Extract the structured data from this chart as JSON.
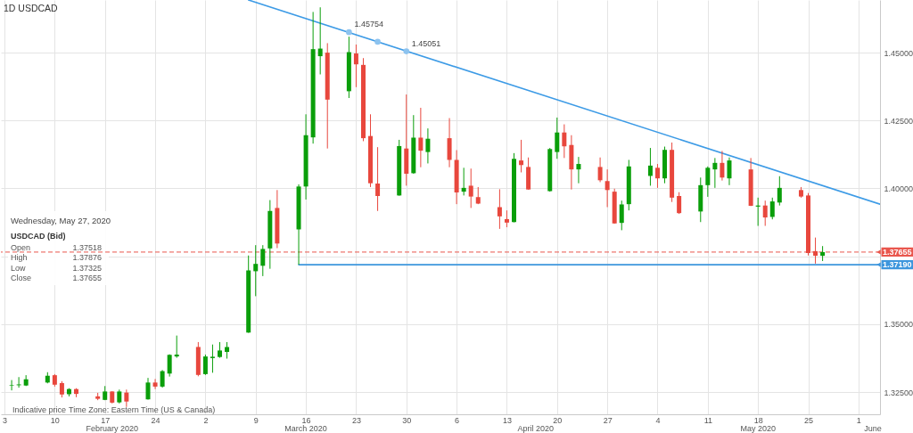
{
  "chart_data": {
    "type": "candlestick",
    "title": "1D USDCAD",
    "x": [
      "2020-02-04",
      "2020-02-05",
      "2020-02-06",
      "2020-02-09",
      "2020-02-10",
      "2020-02-11",
      "2020-02-12",
      "2020-02-13",
      "2020-02-16",
      "2020-02-17",
      "2020-02-18",
      "2020-02-19",
      "2020-02-20",
      "2020-02-23",
      "2020-02-24",
      "2020-02-25",
      "2020-02-26",
      "2020-02-27",
      "2020-03-01",
      "2020-03-02",
      "2020-03-03",
      "2020-03-04",
      "2020-03-05",
      "2020-03-08",
      "2020-03-09",
      "2020-03-10",
      "2020-03-11",
      "2020-03-12",
      "2020-03-15",
      "2020-03-16",
      "2020-03-17",
      "2020-03-18",
      "2020-03-19",
      "2020-03-22",
      "2020-03-23",
      "2020-03-24",
      "2020-03-25",
      "2020-03-26",
      "2020-03-29",
      "2020-03-30",
      "2020-03-31",
      "2020-04-01",
      "2020-04-02",
      "2020-04-05",
      "2020-04-06",
      "2020-04-07",
      "2020-04-08",
      "2020-04-09",
      "2020-04-12",
      "2020-04-13",
      "2020-04-14",
      "2020-04-15",
      "2020-04-16",
      "2020-04-19",
      "2020-04-20",
      "2020-04-21",
      "2020-04-22",
      "2020-04-23",
      "2020-04-26",
      "2020-04-27",
      "2020-04-28",
      "2020-04-29",
      "2020-04-30",
      "2020-05-03",
      "2020-05-04",
      "2020-05-05",
      "2020-05-06",
      "2020-05-07",
      "2020-05-10",
      "2020-05-11",
      "2020-05-12",
      "2020-05-13",
      "2020-05-14",
      "2020-05-17",
      "2020-05-18",
      "2020-05-19",
      "2020-05-20",
      "2020-05-21",
      "2020-05-24",
      "2020-05-25",
      "2020-05-26",
      "2020-05-27"
    ],
    "ohlc": [
      [
        1.3273,
        1.3294,
        1.3256,
        1.3275
      ],
      [
        1.3275,
        1.3305,
        1.3266,
        1.3278
      ],
      [
        1.3274,
        1.3312,
        1.3272,
        1.3297
      ],
      [
        1.3285,
        1.3323,
        1.3282,
        1.331
      ],
      [
        1.3312,
        1.3316,
        1.327,
        1.3277
      ],
      [
        1.3283,
        1.329,
        1.323,
        1.3241
      ],
      [
        1.3242,
        1.3264,
        1.3234,
        1.3261
      ],
      [
        1.3261,
        1.3264,
        1.3231,
        1.3243
      ],
      [
        1.3234,
        1.3247,
        1.322,
        1.3225
      ],
      [
        1.3221,
        1.3272,
        1.322,
        1.3252
      ],
      [
        1.3252,
        1.3253,
        1.3208,
        1.3211
      ],
      [
        1.3212,
        1.3259,
        1.3208,
        1.3252
      ],
      [
        1.3248,
        1.3259,
        1.3195,
        1.3215
      ],
      [
        1.3223,
        1.3302,
        1.3222,
        1.3285
      ],
      [
        1.3285,
        1.3298,
        1.3261,
        1.327
      ],
      [
        1.327,
        1.3331,
        1.3266,
        1.3327
      ],
      [
        1.3318,
        1.3389,
        1.3307,
        1.3387
      ],
      [
        1.3381,
        1.3458,
        1.3376,
        1.3388
      ],
      [
        1.3416,
        1.3434,
        1.3308,
        1.3313
      ],
      [
        1.3316,
        1.3388,
        1.3313,
        1.3381
      ],
      [
        1.3375,
        1.3425,
        1.3321,
        1.338
      ],
      [
        1.3379,
        1.3434,
        1.3376,
        1.3403
      ],
      [
        1.3398,
        1.3434,
        1.3373,
        1.3416
      ],
      [
        1.3469,
        1.3753,
        1.3468,
        1.3698
      ],
      [
        1.3695,
        1.3791,
        1.3603,
        1.3722
      ],
      [
        1.3715,
        1.3791,
        1.3677,
        1.3777
      ],
      [
        1.3779,
        1.3957,
        1.3704,
        1.3917
      ],
      [
        1.3928,
        1.3994,
        1.378,
        1.3797
      ],
      [
        1.3849,
        1.4015,
        1.3719,
        1.4007
      ],
      [
        1.4007,
        1.4273,
        1.3959,
        1.4196
      ],
      [
        1.4188,
        1.465,
        1.4165,
        1.4513
      ],
      [
        1.4487,
        1.4667,
        1.442,
        1.4515
      ],
      [
        1.45,
        1.4535,
        1.4147,
        1.4327
      ],
      [
        1.4358,
        1.4559,
        1.4333,
        1.4502
      ],
      [
        1.4497,
        1.453,
        1.4373,
        1.4457
      ],
      [
        1.4455,
        1.448,
        1.4174,
        1.4185
      ],
      [
        1.4193,
        1.4273,
        1.4005,
        1.4019
      ],
      [
        1.4018,
        1.4152,
        1.3917,
        1.3972
      ],
      [
        1.3974,
        1.4179,
        1.3973,
        1.4156
      ],
      [
        1.4147,
        1.4346,
        1.401,
        1.4054
      ],
      [
        1.4056,
        1.427,
        1.4054,
        1.4187
      ],
      [
        1.4187,
        1.4297,
        1.4078,
        1.4139
      ],
      [
        1.4134,
        1.4221,
        1.4092,
        1.4183
      ],
      [
        1.4185,
        1.4259,
        1.4078,
        1.4105
      ],
      [
        1.4105,
        1.4141,
        1.3942,
        1.3985
      ],
      [
        1.3988,
        1.4076,
        1.3974,
        1.4002
      ],
      [
        1.401,
        1.4073,
        1.3928,
        1.397
      ],
      [
        1.3968,
        1.4005,
        1.3942,
        1.3944
      ],
      [
        1.3931,
        1.3997,
        1.3851,
        1.3897
      ],
      [
        1.3887,
        1.3919,
        1.3857,
        1.3874
      ],
      [
        1.3876,
        1.413,
        1.3875,
        1.4109
      ],
      [
        1.4103,
        1.4179,
        1.4059,
        1.4086
      ],
      [
        1.4079,
        1.4114,
        1.3995,
        1.3996
      ],
      [
        1.399,
        1.4149,
        1.3988,
        1.4145
      ],
      [
        1.4134,
        1.4261,
        1.4109,
        1.4206
      ],
      [
        1.4206,
        1.4236,
        1.4112,
        1.4155
      ],
      [
        1.416,
        1.4196,
        1.3996,
        1.407
      ],
      [
        1.407,
        1.4116,
        1.4019,
        1.409
      ],
      [
        1.4079,
        1.4114,
        1.4023,
        1.403
      ],
      [
        1.4027,
        1.407,
        1.3931,
        1.3994
      ],
      [
        1.3988,
        1.3999,
        1.387,
        1.3871
      ],
      [
        1.3873,
        1.3955,
        1.3846,
        1.3941
      ],
      [
        1.3942,
        1.4105,
        1.3919,
        1.4081
      ],
      [
        1.4046,
        1.4149,
        1.401,
        1.4084
      ],
      [
        1.4076,
        1.409,
        1.4002,
        1.4037
      ],
      [
        1.4037,
        1.4154,
        1.4019,
        1.4142
      ],
      [
        1.4142,
        1.4169,
        1.395,
        1.3966
      ],
      [
        1.3972,
        1.3986,
        1.3906,
        1.3909
      ],
      [
        1.3915,
        1.404,
        1.3876,
        1.4012
      ],
      [
        1.4012,
        1.4081,
        1.3969,
        1.4076
      ],
      [
        1.407,
        1.4112,
        1.4002,
        1.4094
      ],
      [
        1.4094,
        1.4138,
        1.4029,
        1.404
      ],
      [
        1.4037,
        1.4114,
        1.4012,
        1.4103
      ],
      [
        1.407,
        1.4112,
        1.3935,
        1.3936
      ],
      [
        1.3933,
        1.3966,
        1.3862,
        1.3937
      ],
      [
        1.3937,
        1.3955,
        1.3862,
        1.3893
      ],
      [
        1.3895,
        1.3966,
        1.3886,
        1.3952
      ],
      [
        1.3948,
        1.4045,
        1.3937,
        1.4002
      ],
      [
        1.3994,
        1.4005,
        1.3966,
        1.397
      ],
      [
        1.3974,
        1.3983,
        1.3753,
        1.3762
      ],
      [
        1.3769,
        1.3819,
        1.3723,
        1.3752
      ],
      [
        1.37518,
        1.37876,
        1.37325,
        1.37655
      ]
    ],
    "colors": [
      "#0a9e0a",
      "#0a9e0a",
      "#0a9e0a",
      "#0a9e0a",
      "#e8473d",
      "#e8473d",
      "#0a9e0a",
      "#e8473d",
      "#e8473d",
      "#0a9e0a",
      "#e8473d",
      "#0a9e0a",
      "#e8473d",
      "#0a9e0a",
      "#e8473d",
      "#0a9e0a",
      "#0a9e0a",
      "#0a9e0a",
      "#e8473d",
      "#0a9e0a",
      "#0a9e0a",
      "#0a9e0a",
      "#0a9e0a",
      "#0a9e0a",
      "#0a9e0a",
      "#0a9e0a",
      "#0a9e0a",
      "#e8473d",
      "#0a9e0a",
      "#0a9e0a",
      "#0a9e0a",
      "#0a9e0a",
      "#e8473d",
      "#0a9e0a",
      "#e8473d",
      "#e8473d",
      "#e8473d",
      "#e8473d",
      "#0a9e0a",
      "#e8473d",
      "#0a9e0a",
      "#e8473d",
      "#0a9e0a",
      "#e8473d",
      "#e8473d",
      "#0a9e0a",
      "#e8473d",
      "#e8473d",
      "#e8473d",
      "#e8473d",
      "#0a9e0a",
      "#e8473d",
      "#e8473d",
      "#0a9e0a",
      "#0a9e0a",
      "#e8473d",
      "#e8473d",
      "#0a9e0a",
      "#e8473d",
      "#e8473d",
      "#e8473d",
      "#0a9e0a",
      "#0a9e0a",
      "#0a9e0a",
      "#e8473d",
      "#0a9e0a",
      "#e8473d",
      "#e8473d",
      "#0a9e0a",
      "#0a9e0a",
      "#0a9e0a",
      "#e8473d",
      "#0a9e0a",
      "#e8473d",
      "#0a9e0a",
      "#e8473d",
      "#0a9e0a",
      "#0a9e0a",
      "#e8473d",
      "#e8473d",
      "#e8473d",
      "#0a9e0a"
    ],
    "series": [
      {
        "type": "line",
        "color": "#3d9be6",
        "x": [
          "2020-03-08",
          "2020-06-04"
        ],
        "values": [
          1.4694,
          1.3942
        ]
      },
      {
        "type": "scatter",
        "color": "#8dc3ef",
        "marker": "circle",
        "x": [
          "2020-03-22",
          "2020-03-26",
          "2020-03-30"
        ],
        "values": [
          1.45754,
          1.454,
          1.45051
        ],
        "value_labels": [
          "1.45754",
          null,
          "1.45051"
        ]
      },
      {
        "type": "line",
        "name": "1.37190",
        "color": "#3d96dd",
        "x": [
          "2020-03-15",
          "2020-06-04"
        ],
        "values": [
          1.3719,
          1.3719
        ]
      }
    ],
    "ref_lines": [
      {
        "axis": "y",
        "value": 1.37655,
        "label": "1.37655",
        "color": "#e9564d",
        "line_style": "dashed"
      }
    ],
    "xlim": [
      "2020-02-02T12:00",
      "2020-06-04"
    ],
    "xticks": [
      {
        "value": "2020-02-03",
        "label": "3"
      },
      {
        "value": "2020-02-10",
        "label": "10"
      },
      {
        "value": "2020-02-17",
        "label": "17"
      },
      {
        "value": "2020-02-24",
        "label": "24"
      },
      {
        "value": "2020-03-02",
        "label": "2"
      },
      {
        "value": "2020-03-09",
        "label": "9"
      },
      {
        "value": "2020-03-16",
        "label": "16"
      },
      {
        "value": "2020-03-23",
        "label": "23"
      },
      {
        "value": "2020-03-30",
        "label": "30"
      },
      {
        "value": "2020-04-06",
        "label": "6"
      },
      {
        "value": "2020-04-13",
        "label": "13"
      },
      {
        "value": "2020-04-20",
        "label": "20"
      },
      {
        "value": "2020-04-27",
        "label": "27"
      },
      {
        "value": "2020-05-04",
        "label": "4"
      },
      {
        "value": "2020-05-11",
        "label": "11"
      },
      {
        "value": "2020-05-18",
        "label": "18"
      },
      {
        "value": "2020-05-25",
        "label": "25"
      },
      {
        "value": "2020-06-01",
        "label": "1"
      }
    ],
    "x2lim": [
      "2020-02-02T12:00",
      "2020-06-04"
    ],
    "x2ticks": [
      {
        "value": "2020-02-18",
        "label": "February 2020"
      },
      {
        "value": "2020-03-16",
        "label": "March 2020"
      },
      {
        "value": "2020-04-17",
        "label": "April 2020"
      },
      {
        "value": "2020-05-18",
        "label": "May 2020"
      },
      {
        "value": "2020-06-03",
        "label": "June"
      }
    ],
    "ylim": [
      1.3168,
      1.4694
    ],
    "yticks": [
      {
        "value": 1.325,
        "label": "1.32500"
      },
      {
        "value": 1.35,
        "label": "1.35000"
      },
      {
        "value": 1.375,
        "label": null
      },
      {
        "value": 1.4,
        "label": "1.40000"
      },
      {
        "value": 1.425,
        "label": "1.42500"
      },
      {
        "value": 1.45,
        "label": "1.45000"
      }
    ],
    "grid": true,
    "annotations": [
      "Wednesday, May 27, 2020",
      "USDCAD (Bid)",
      "Open",
      "1.37518",
      "High",
      "1.37876",
      "Low",
      "1.37325",
      "Close",
      "1.37655",
      "Indicative price",
      "Time Zone: Eastern Time (US & Canada)"
    ]
  }
}
